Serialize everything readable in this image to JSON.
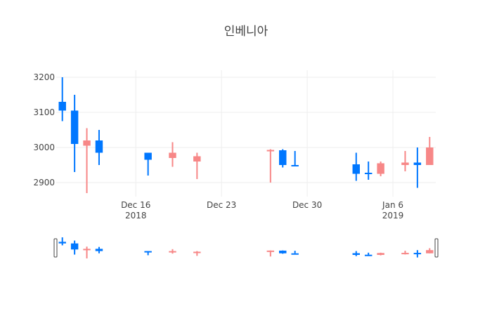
{
  "chart_data": {
    "type": "candlestick",
    "title": "인베니아",
    "xlabel": "",
    "ylabel": "",
    "grid": true,
    "rangeslider": true,
    "ylim": [
      2860,
      3220
    ],
    "yticks": [
      2900,
      3000,
      3100,
      3200
    ],
    "xticks": [
      {
        "date": "2018-12-16",
        "label": "Dec 16",
        "sublabel": "2018"
      },
      {
        "date": "2018-12-23",
        "label": "Dec 23",
        "sublabel": ""
      },
      {
        "date": "2018-12-30",
        "label": "Dec 30",
        "sublabel": ""
      },
      {
        "date": "2019-01-06",
        "label": "Jan 6",
        "sublabel": "2019"
      }
    ],
    "xrange": [
      "2018-12-10",
      "2019-01-09"
    ],
    "increasing_color": "#0077ff",
    "decreasing_color": "#f78787",
    "candles": [
      {
        "date": "2018-12-10",
        "open": 3105,
        "high": 3200,
        "low": 3075,
        "close": 3130
      },
      {
        "date": "2018-12-11",
        "open": 3010,
        "high": 3150,
        "low": 2930,
        "close": 3105
      },
      {
        "date": "2018-12-12",
        "open": 3020,
        "high": 3055,
        "low": 2870,
        "close": 3005
      },
      {
        "date": "2018-12-13",
        "open": 2985,
        "high": 3050,
        "low": 2950,
        "close": 3020
      },
      {
        "date": "2018-12-17",
        "open": 2965,
        "high": 2985,
        "low": 2920,
        "close": 2985
      },
      {
        "date": "2018-12-19",
        "open": 2985,
        "high": 3015,
        "low": 2945,
        "close": 2970
      },
      {
        "date": "2018-12-21",
        "open": 2975,
        "high": 2985,
        "low": 2910,
        "close": 2960
      },
      {
        "date": "2018-12-27",
        "open": 2993,
        "high": 2995,
        "low": 2900,
        "close": 2990
      },
      {
        "date": "2018-12-28",
        "open": 2950,
        "high": 2995,
        "low": 2943,
        "close": 2992
      },
      {
        "date": "2018-12-29",
        "open": 2950,
        "high": 2990,
        "low": 2950,
        "close": 2950
      },
      {
        "date": "2019-01-03",
        "open": 2925,
        "high": 2985,
        "low": 2905,
        "close": 2952
      },
      {
        "date": "2019-01-04",
        "open": 2925,
        "high": 2960,
        "low": 2908,
        "close": 2928
      },
      {
        "date": "2019-01-05",
        "open": 2955,
        "high": 2960,
        "low": 2918,
        "close": 2925
      },
      {
        "date": "2019-01-07",
        "open": 2957,
        "high": 2990,
        "low": 2932,
        "close": 2950
      },
      {
        "date": "2019-01-08",
        "open": 2950,
        "high": 3000,
        "low": 2885,
        "close": 2957
      },
      {
        "date": "2019-01-09",
        "open": 3000,
        "high": 3030,
        "low": 2950,
        "close": 2950
      }
    ]
  }
}
